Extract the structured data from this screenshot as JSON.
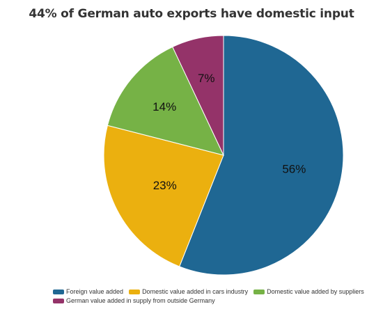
{
  "chart_data": {
    "type": "pie",
    "title": "44% of German auto exports have domestic input",
    "slices": [
      {
        "name": "Foreign value added",
        "value": 56,
        "label": "56%",
        "color": "#1f6793"
      },
      {
        "name": "Domestic value added in cars industry",
        "value": 23,
        "label": "23%",
        "color": "#ebb00f"
      },
      {
        "name": "Domestic value added by suppliers",
        "value": 14,
        "label": "14%",
        "color": "#76b246"
      },
      {
        "name": "German value added in supply from outside Germany",
        "value": 7,
        "label": "7%",
        "color": "#943369"
      }
    ],
    "start_angle_deg": 0,
    "direction": "clockwise",
    "legend_position": "bottom"
  }
}
